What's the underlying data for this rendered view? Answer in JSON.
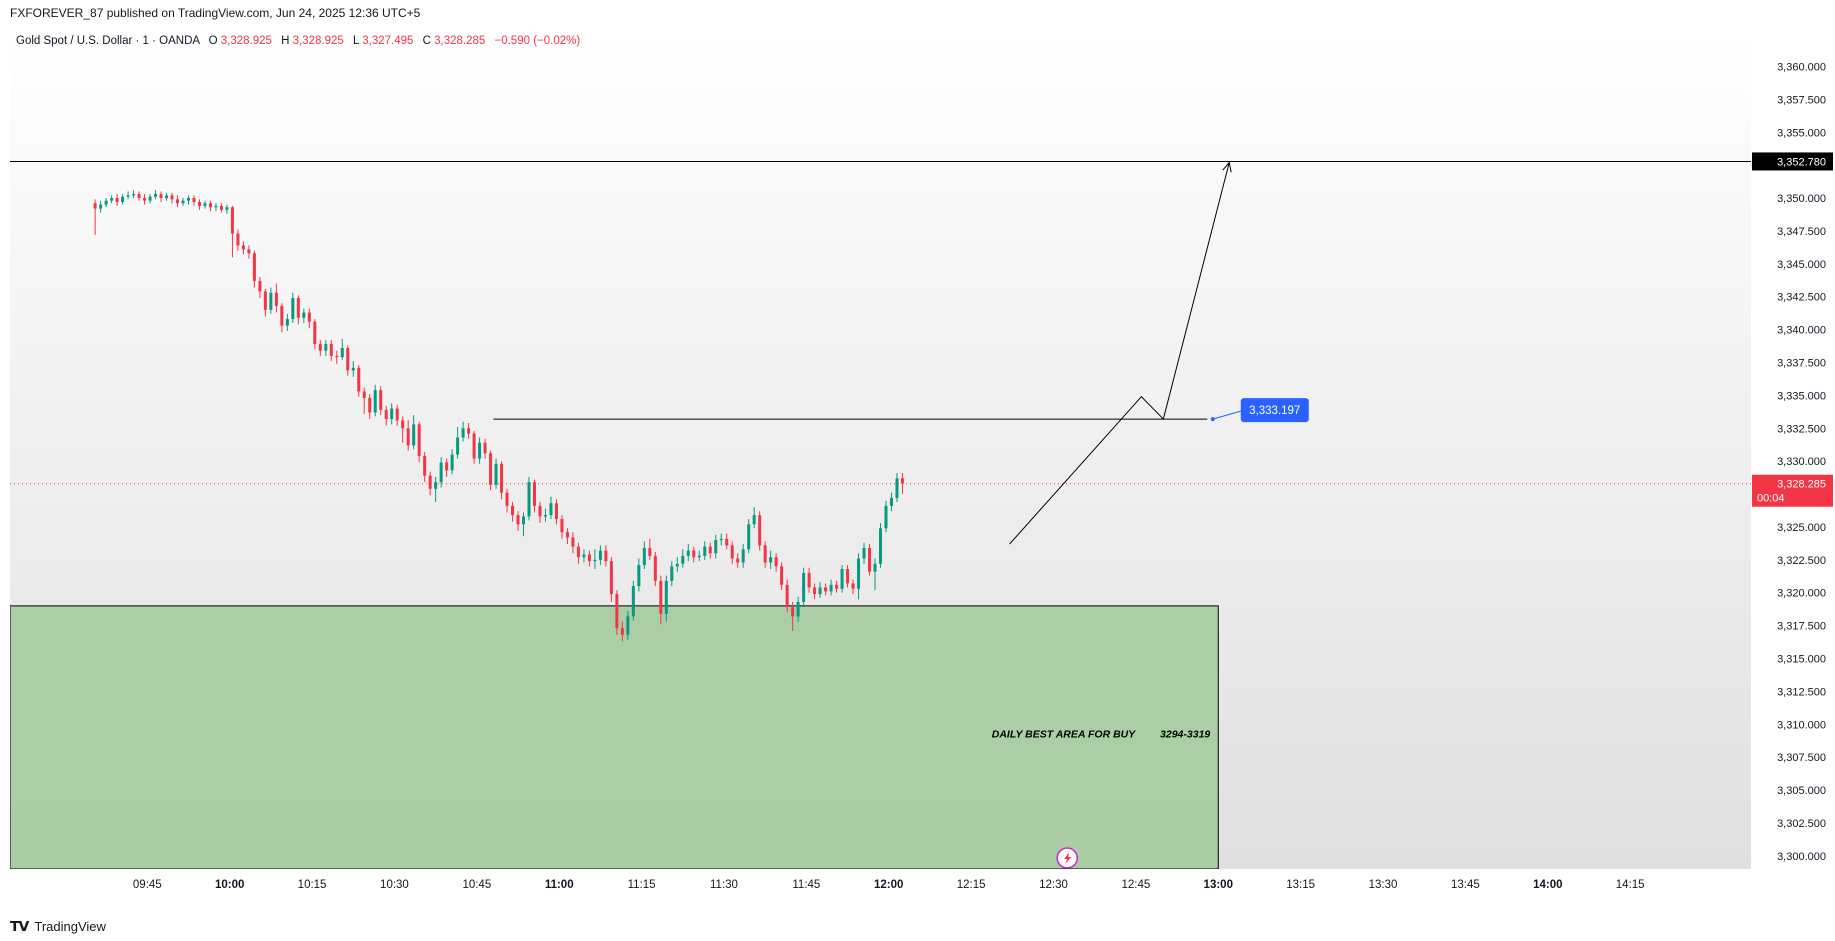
{
  "header": {
    "publisher_line": "FXFOREVER_87 published on TradingView.com, Jun 24, 2025 12:36 UTC+5"
  },
  "legend": {
    "symbol": "Gold Spot / U.S. Dollar · 1 · OANDA",
    "o_label": "O",
    "o_value": "3,328.925",
    "h_label": "H",
    "h_value": "3,328.925",
    "l_label": "L",
    "l_value": "3,327.495",
    "c_label": "C",
    "c_value": "3,328.285",
    "change": "−0.590 (−0.02%)"
  },
  "footer": {
    "brand": "TradingView"
  },
  "colors": {
    "up": "#089981",
    "down": "#f23645",
    "zone_fill": "#a5cba0",
    "label_blue": "#2962ff",
    "current_price_bg": "#f23645",
    "target_bg": "#000000",
    "text": "#131722"
  },
  "chart_data": {
    "type": "candlestick",
    "ylim": [
      3299,
      3363
    ],
    "y_ticks": [
      "3,300.000",
      "3,302.500",
      "3,305.000",
      "3,307.500",
      "3,310.000",
      "3,312.500",
      "3,315.000",
      "3,317.500",
      "3,320.000",
      "3,322.500",
      "3,325.000",
      "3,327.500",
      "3,330.000",
      "3,332.500",
      "3,335.000",
      "3,337.500",
      "3,340.000",
      "3,342.500",
      "3,345.000",
      "3,347.500",
      "3,350.000",
      "3,352.500",
      "3,355.000",
      "3,357.500",
      "3,360.000"
    ],
    "y_tick_values": [
      3300,
      3302.5,
      3305,
      3307.5,
      3310,
      3312.5,
      3315,
      3317.5,
      3320,
      3322.5,
      3325,
      3327.5,
      3330,
      3332.5,
      3335,
      3337.5,
      3340,
      3342.5,
      3345,
      3347.5,
      3350,
      3352.5,
      3355,
      3357.5,
      3360
    ],
    "x_range_minutes": [
      560,
      877
    ],
    "x_ticks": [
      {
        "label": "09:45",
        "m": 585,
        "bold": false
      },
      {
        "label": "10:00",
        "m": 600,
        "bold": true
      },
      {
        "label": "10:15",
        "m": 615,
        "bold": false
      },
      {
        "label": "10:30",
        "m": 630,
        "bold": false
      },
      {
        "label": "10:45",
        "m": 645,
        "bold": false
      },
      {
        "label": "11:00",
        "m": 660,
        "bold": true
      },
      {
        "label": "11:15",
        "m": 675,
        "bold": false
      },
      {
        "label": "11:30",
        "m": 690,
        "bold": false
      },
      {
        "label": "11:45",
        "m": 705,
        "bold": false
      },
      {
        "label": "12:00",
        "m": 720,
        "bold": true
      },
      {
        "label": "12:15",
        "m": 735,
        "bold": false
      },
      {
        "label": "12:30",
        "m": 750,
        "bold": false
      },
      {
        "label": "12:45",
        "m": 765,
        "bold": false
      },
      {
        "label": "13:00",
        "m": 780,
        "bold": true
      },
      {
        "label": "13:15",
        "m": 795,
        "bold": false
      },
      {
        "label": "13:30",
        "m": 810,
        "bold": false
      },
      {
        "label": "13:45",
        "m": 825,
        "bold": false
      },
      {
        "label": "14:00",
        "m": 840,
        "bold": true
      },
      {
        "label": "14:15",
        "m": 855,
        "bold": false
      }
    ],
    "candle_start_minute": 575,
    "candles": [
      [
        3349.6,
        3349.2,
        3349.9,
        3347.2
      ],
      [
        3349.2,
        3349.5,
        3349.8,
        3348.9
      ],
      [
        3349.5,
        3349.8,
        3350.0,
        3349.3
      ],
      [
        3349.8,
        3350.0,
        3350.2,
        3349.6
      ],
      [
        3350.0,
        3349.7,
        3350.3,
        3349.4
      ],
      [
        3349.7,
        3350.1,
        3350.3,
        3349.5
      ],
      [
        3350.1,
        3350.2,
        3350.5,
        3349.9
      ],
      [
        3350.2,
        3350.3,
        3350.6,
        3350.0
      ],
      [
        3350.3,
        3350.0,
        3350.5,
        3349.8
      ],
      [
        3350.0,
        3349.8,
        3350.3,
        3349.5
      ],
      [
        3349.8,
        3350.1,
        3350.3,
        3349.6
      ],
      [
        3350.1,
        3350.3,
        3350.6,
        3349.9
      ],
      [
        3350.3,
        3350.0,
        3350.5,
        3349.7
      ],
      [
        3350.0,
        3350.2,
        3350.4,
        3349.8
      ],
      [
        3350.2,
        3349.9,
        3350.4,
        3349.6
      ],
      [
        3349.9,
        3349.6,
        3350.2,
        3349.3
      ],
      [
        3349.6,
        3349.8,
        3350.0,
        3349.4
      ],
      [
        3349.8,
        3350.0,
        3350.2,
        3349.5
      ],
      [
        3350.0,
        3349.7,
        3350.2,
        3349.4
      ],
      [
        3349.7,
        3349.4,
        3349.9,
        3349.1
      ],
      [
        3349.4,
        3349.6,
        3349.8,
        3349.2
      ],
      [
        3349.6,
        3349.3,
        3349.8,
        3349.0
      ],
      [
        3349.3,
        3349.4,
        3349.6,
        3349.0
      ],
      [
        3349.4,
        3349.1,
        3349.6,
        3348.9
      ],
      [
        3349.1,
        3349.3,
        3349.5,
        3348.8
      ],
      [
        3349.3,
        3347.3,
        3349.4,
        3345.5
      ],
      [
        3347.3,
        3346.4,
        3347.6,
        3346.0
      ],
      [
        3346.4,
        3346.1,
        3346.7,
        3345.7
      ],
      [
        3346.1,
        3345.8,
        3346.4,
        3345.4
      ],
      [
        3345.8,
        3343.7,
        3346.0,
        3343.2
      ],
      [
        3343.7,
        3342.9,
        3344.0,
        3342.4
      ],
      [
        3342.9,
        3341.5,
        3343.1,
        3341.0
      ],
      [
        3341.5,
        3342.8,
        3343.2,
        3341.2
      ],
      [
        3342.8,
        3341.8,
        3343.5,
        3341.3
      ],
      [
        3341.8,
        3340.3,
        3342.0,
        3339.8
      ],
      [
        3340.3,
        3340.8,
        3341.2,
        3339.9
      ],
      [
        3340.8,
        3342.4,
        3342.8,
        3340.5
      ],
      [
        3342.4,
        3340.9,
        3342.6,
        3340.4
      ],
      [
        3340.9,
        3341.3,
        3341.6,
        3340.5
      ],
      [
        3341.3,
        3340.6,
        3341.6,
        3340.1
      ],
      [
        3340.6,
        3338.9,
        3340.8,
        3338.5
      ],
      [
        3338.9,
        3338.4,
        3339.2,
        3338.0
      ],
      [
        3338.4,
        3338.9,
        3339.2,
        3338.0
      ],
      [
        3338.9,
        3338.0,
        3339.2,
        3337.6
      ],
      [
        3338.0,
        3337.9,
        3338.4,
        3337.4
      ],
      [
        3337.9,
        3338.6,
        3339.3,
        3337.7
      ],
      [
        3338.6,
        3336.9,
        3338.8,
        3336.5
      ],
      [
        3336.9,
        3337.1,
        3337.6,
        3336.4
      ],
      [
        3337.1,
        3335.3,
        3337.3,
        3334.9
      ],
      [
        3335.3,
        3334.8,
        3335.6,
        3333.6
      ],
      [
        3334.8,
        3333.7,
        3335.1,
        3333.2
      ],
      [
        3333.7,
        3335.4,
        3335.8,
        3333.4
      ],
      [
        3335.4,
        3333.9,
        3335.7,
        3333.5
      ],
      [
        3333.9,
        3333.2,
        3334.2,
        3332.7
      ],
      [
        3333.2,
        3334.0,
        3334.4,
        3332.8
      ],
      [
        3334.0,
        3333.1,
        3334.3,
        3332.7
      ],
      [
        3333.1,
        3332.5,
        3333.4,
        3331.4
      ],
      [
        3332.5,
        3331.2,
        3333.1,
        3330.8
      ],
      [
        3331.2,
        3332.8,
        3333.5,
        3330.9
      ],
      [
        3332.8,
        3330.4,
        3333.0,
        3329.9
      ],
      [
        3330.4,
        3328.9,
        3330.7,
        3328.4
      ],
      [
        3328.9,
        3327.9,
        3329.2,
        3327.4
      ],
      [
        3327.9,
        3328.4,
        3328.8,
        3326.9
      ],
      [
        3328.4,
        3329.9,
        3330.3,
        3328.0
      ],
      [
        3329.9,
        3329.3,
        3330.2,
        3328.8
      ],
      [
        3329.3,
        3330.5,
        3330.9,
        3329.0
      ],
      [
        3330.5,
        3331.8,
        3332.6,
        3330.2
      ],
      [
        3331.8,
        3332.5,
        3333.0,
        3331.5
      ],
      [
        3332.5,
        3332.1,
        3332.9,
        3331.7
      ],
      [
        3332.1,
        3330.2,
        3332.3,
        3329.8
      ],
      [
        3330.2,
        3331.4,
        3331.8,
        3329.8
      ],
      [
        3331.4,
        3330.6,
        3331.7,
        3330.2
      ],
      [
        3330.6,
        3328.2,
        3330.8,
        3327.8
      ],
      [
        3328.2,
        3329.8,
        3330.2,
        3327.9
      ],
      [
        3329.8,
        3327.6,
        3330.0,
        3327.1
      ],
      [
        3327.6,
        3326.6,
        3327.9,
        3326.1
      ],
      [
        3326.6,
        3325.9,
        3326.9,
        3325.4
      ],
      [
        3325.9,
        3325.2,
        3326.2,
        3324.7
      ],
      [
        3325.2,
        3325.8,
        3326.1,
        3324.3
      ],
      [
        3325.8,
        3328.4,
        3328.8,
        3325.5
      ],
      [
        3328.4,
        3326.6,
        3328.6,
        3326.1
      ],
      [
        3326.6,
        3325.8,
        3326.9,
        3325.3
      ],
      [
        3325.8,
        3325.9,
        3326.4,
        3325.4
      ],
      [
        3325.9,
        3326.8,
        3327.3,
        3325.6
      ],
      [
        3326.8,
        3325.6,
        3327.1,
        3325.2
      ],
      [
        3325.6,
        3324.6,
        3325.9,
        3324.1
      ],
      [
        3324.6,
        3324.2,
        3324.9,
        3323.7
      ],
      [
        3324.2,
        3323.5,
        3324.6,
        3323.0
      ],
      [
        3323.5,
        3322.7,
        3323.8,
        3322.2
      ],
      [
        3322.7,
        3322.9,
        3323.3,
        3322.3
      ],
      [
        3322.9,
        3322.4,
        3323.2,
        3322.0
      ],
      [
        3322.4,
        3322.5,
        3323.3,
        3321.8
      ],
      [
        3322.5,
        3323.2,
        3323.6,
        3322.1
      ],
      [
        3323.2,
        3322.4,
        3323.6,
        3322.0
      ],
      [
        3322.4,
        3319.9,
        3322.7,
        3319.3
      ],
      [
        3319.9,
        3317.3,
        3320.2,
        3316.8
      ],
      [
        3317.3,
        3316.8,
        3317.8,
        3316.3
      ],
      [
        3316.8,
        3318.2,
        3318.6,
        3316.4
      ],
      [
        3318.2,
        3320.5,
        3320.9,
        3317.9
      ],
      [
        3320.5,
        3322.1,
        3322.6,
        3320.1
      ],
      [
        3322.1,
        3323.4,
        3323.9,
        3321.8
      ],
      [
        3323.4,
        3322.8,
        3324.1,
        3322.5
      ],
      [
        3322.8,
        3320.9,
        3323.1,
        3320.5
      ],
      [
        3320.9,
        3318.4,
        3321.3,
        3317.6
      ],
      [
        3318.4,
        3320.9,
        3321.3,
        3317.8
      ],
      [
        3320.9,
        3322.0,
        3322.4,
        3320.5
      ],
      [
        3322.0,
        3322.2,
        3322.7,
        3321.6
      ],
      [
        3322.2,
        3322.8,
        3323.3,
        3321.9
      ],
      [
        3322.8,
        3323.2,
        3323.7,
        3322.4
      ],
      [
        3323.2,
        3322.7,
        3323.5,
        3322.3
      ],
      [
        3322.7,
        3322.8,
        3323.2,
        3322.4
      ],
      [
        3322.8,
        3323.5,
        3323.9,
        3322.5
      ],
      [
        3323.5,
        3323.0,
        3323.8,
        3322.6
      ],
      [
        3323.0,
        3324.0,
        3324.4,
        3322.6
      ],
      [
        3324.0,
        3324.1,
        3324.5,
        3323.6
      ],
      [
        3324.1,
        3323.6,
        3324.5,
        3323.3
      ],
      [
        3323.6,
        3322.6,
        3323.9,
        3322.2
      ],
      [
        3322.6,
        3322.3,
        3323.0,
        3321.9
      ],
      [
        3322.3,
        3323.3,
        3323.7,
        3321.9
      ],
      [
        3323.3,
        3325.2,
        3325.6,
        3323.0
      ],
      [
        3325.2,
        3325.9,
        3326.5,
        3324.9
      ],
      [
        3325.9,
        3323.6,
        3326.2,
        3323.2
      ],
      [
        3323.6,
        3322.3,
        3323.9,
        3321.9
      ],
      [
        3322.3,
        3322.7,
        3323.2,
        3321.8
      ],
      [
        3322.7,
        3322.0,
        3323.0,
        3321.6
      ],
      [
        3322.0,
        3320.6,
        3322.3,
        3320.2
      ],
      [
        3320.6,
        3318.9,
        3321.0,
        3318.5
      ],
      [
        3318.9,
        3318.2,
        3319.3,
        3317.1
      ],
      [
        3318.2,
        3319.3,
        3319.7,
        3317.8
      ],
      [
        3319.3,
        3321.5,
        3321.9,
        3318.9
      ],
      [
        3321.5,
        3320.4,
        3321.9,
        3320.0
      ],
      [
        3320.4,
        3319.9,
        3320.7,
        3319.5
      ],
      [
        3319.9,
        3320.4,
        3320.8,
        3319.6
      ],
      [
        3320.4,
        3320.1,
        3320.7,
        3319.8
      ],
      [
        3320.1,
        3320.6,
        3321.0,
        3319.8
      ],
      [
        3320.6,
        3320.3,
        3320.9,
        3320.0
      ],
      [
        3320.3,
        3321.8,
        3322.1,
        3320.0
      ],
      [
        3321.8,
        3320.7,
        3322.1,
        3320.4
      ],
      [
        3320.7,
        3320.3,
        3321.0,
        3319.9
      ],
      [
        3320.3,
        3322.6,
        3323.0,
        3319.5
      ],
      [
        3322.6,
        3323.4,
        3323.8,
        3322.2
      ],
      [
        3323.4,
        3321.6,
        3323.7,
        3321.3
      ],
      [
        3321.6,
        3322.2,
        3322.6,
        3320.2
      ],
      [
        3322.2,
        3324.9,
        3325.3,
        3321.9
      ],
      [
        3324.9,
        3326.6,
        3327.0,
        3324.6
      ],
      [
        3326.6,
        3327.2,
        3327.6,
        3326.2
      ],
      [
        3327.2,
        3328.7,
        3329.1,
        3326.9
      ],
      [
        3328.7,
        3328.3,
        3329.1,
        3327.5
      ]
    ],
    "current_price": 3328.285,
    "current_price_label": "3,328.285",
    "countdown": "00:04",
    "target_price": 3352.78,
    "target_label": "3,352.780",
    "resistance_price": 3333.197,
    "resistance_label": "3,333.197",
    "resistance_from_minute": 648,
    "resistance_to_minute": 778,
    "label_minute": 779,
    "buy_zone": {
      "top": 3319,
      "bottom": 3294,
      "to_minute": 780
    },
    "zone_text": "DAILY BEST AREA FOR BUY",
    "zone_range_text": "3294-3319",
    "projection_path": [
      [
        742,
        3323.7
      ],
      [
        766,
        3334.9
      ],
      [
        770,
        3333.2
      ],
      [
        782,
        3352.7
      ]
    ]
  }
}
